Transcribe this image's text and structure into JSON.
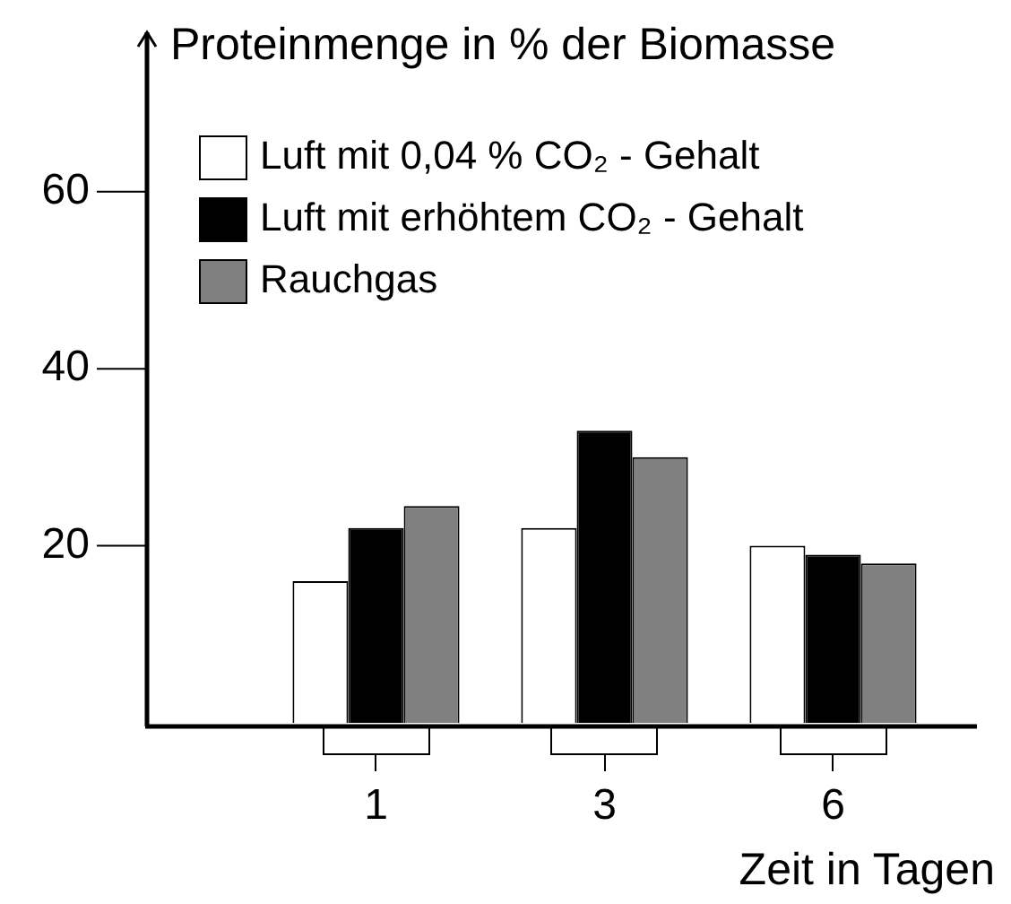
{
  "chart_data": {
    "type": "bar",
    "ylabel": "Proteinmenge in % der Biomasse",
    "xlabel": "Zeit in Tagen",
    "categories": [
      "1",
      "3",
      "6"
    ],
    "series": [
      {
        "name": "Luft mit 0,04 % CO₂ - Gehalt",
        "color": "#ffffff",
        "values": [
          16,
          22,
          20
        ]
      },
      {
        "name": "Luft mit erhöhtem CO₂ - Gehalt",
        "color": "#000000",
        "values": [
          22,
          33,
          19
        ]
      },
      {
        "name": "Rauchgas",
        "color": "#808080",
        "values": [
          24.5,
          30,
          18
        ]
      }
    ],
    "ylim": [
      0,
      78
    ],
    "yticks": [
      20,
      40,
      60
    ],
    "legend": "top left"
  }
}
